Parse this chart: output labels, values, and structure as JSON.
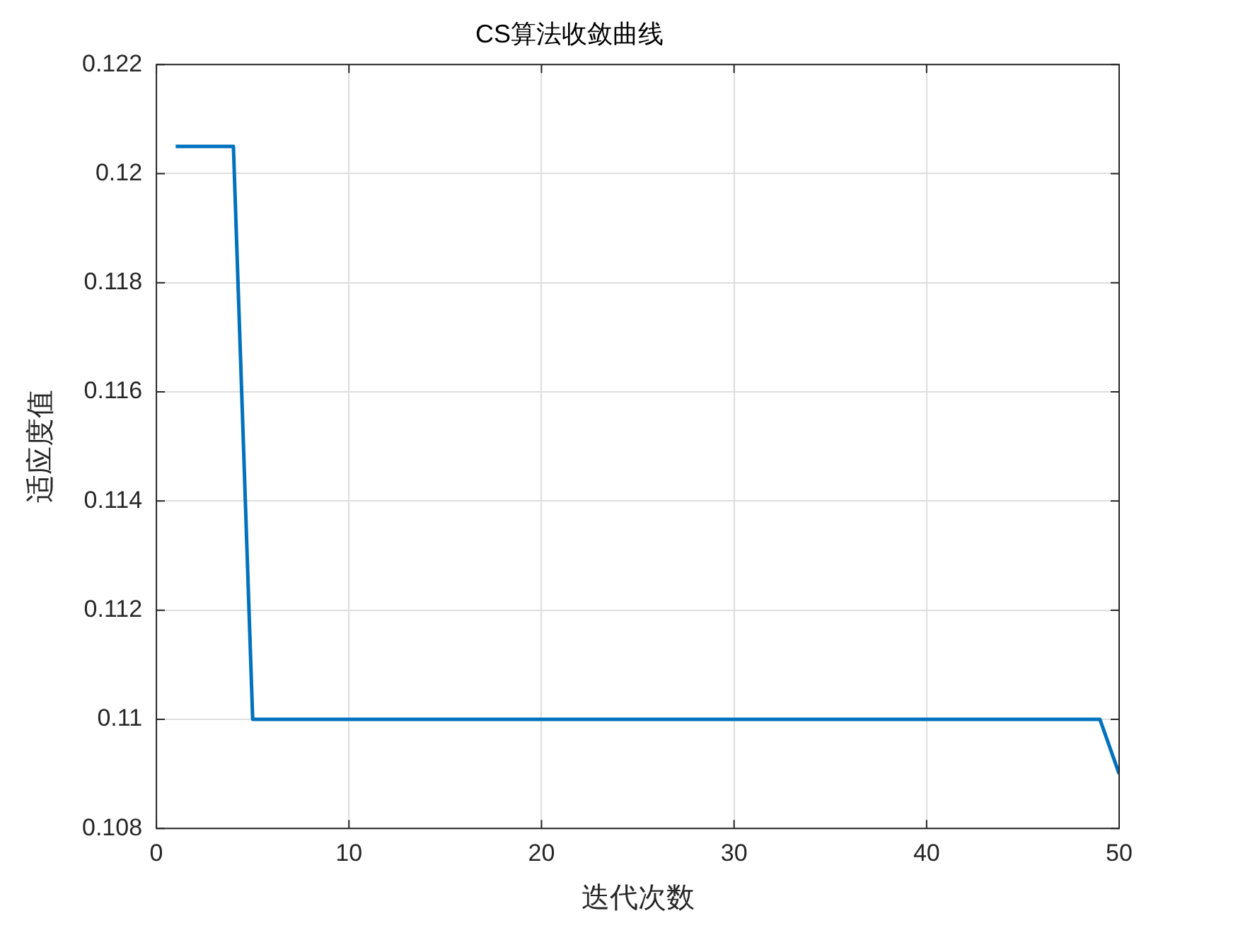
{
  "chart_data": {
    "type": "line",
    "title": "CS算法收敛曲线",
    "xlabel": "迭代次数",
    "ylabel": "适应度值",
    "series": [
      {
        "color": "#0072bd",
        "x": [
          1,
          4,
          5,
          49,
          50
        ],
        "values": [
          0.1205,
          0.1205,
          0.11,
          0.11,
          0.109
        ]
      }
    ],
    "xlim": [
      0,
      50
    ],
    "xticks": [
      0,
      10,
      20,
      30,
      40,
      50
    ],
    "ylim": [
      0.108,
      0.122
    ],
    "yticks": [
      0.108,
      0.11,
      0.112,
      0.114,
      0.116,
      0.118,
      0.12,
      0.122
    ],
    "grid": true,
    "legend": false,
    "marker": "none",
    "line_style": "solid"
  }
}
